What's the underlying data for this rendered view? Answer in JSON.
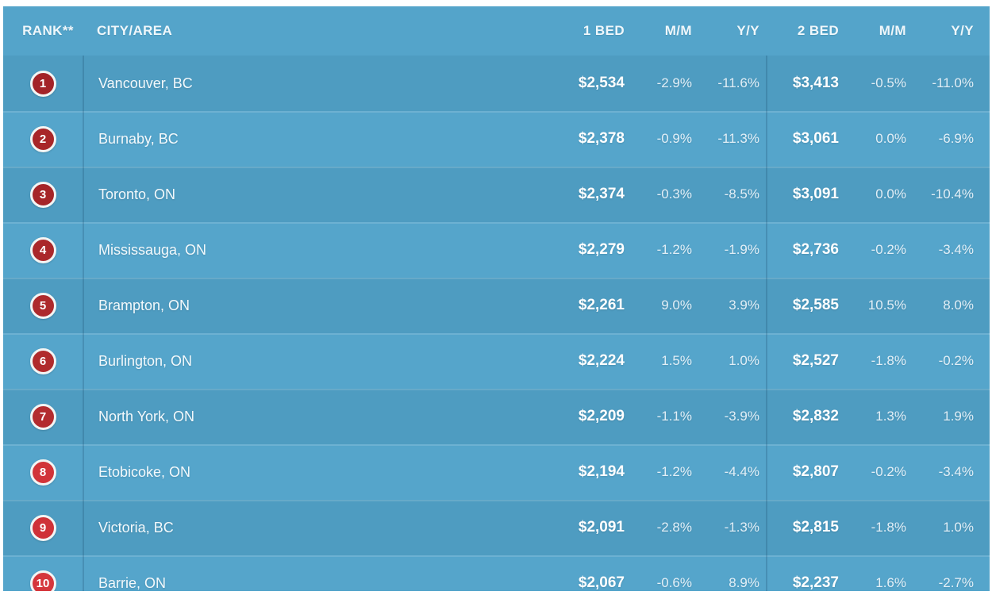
{
  "colors": {
    "header_bg": "#54a4ca",
    "row_dark": "#4e9cc1",
    "row_light": "#55a5cb",
    "divider": "rgba(22,70,100,0.22)",
    "separator": "rgba(255,255,255,0.14)",
    "badge_ring": "#f3f5f4"
  },
  "chart_data": {
    "type": "table",
    "title": "",
    "columns": [
      "RANK**",
      "CITY/AREA",
      "1 BED",
      "M/M",
      "Y/Y",
      "2 BED",
      "M/M",
      "Y/Y"
    ],
    "rows": [
      {
        "rank": "1",
        "city": "Vancouver, BC",
        "one_bed": "$2,534",
        "one_bed_mm": "-2.9%",
        "one_bed_yy": "-11.6%",
        "two_bed": "$3,413",
        "two_bed_mm": "-0.5%",
        "two_bed_yy": "-11.0%",
        "badge_color": "#a32328"
      },
      {
        "rank": "2",
        "city": "Burnaby, BC",
        "one_bed": "$2,378",
        "one_bed_mm": "-0.9%",
        "one_bed_yy": "-11.3%",
        "two_bed": "$3,061",
        "two_bed_mm": "0.0%",
        "two_bed_yy": "-6.9%",
        "badge_color": "#a82629"
      },
      {
        "rank": "3",
        "city": "Toronto, ON",
        "one_bed": "$2,374",
        "one_bed_mm": "-0.3%",
        "one_bed_yy": "-8.5%",
        "two_bed": "$3,091",
        "two_bed_mm": "0.0%",
        "two_bed_yy": "-10.4%",
        "badge_color": "#a52528"
      },
      {
        "rank": "4",
        "city": "Mississauga, ON",
        "one_bed": "$2,279",
        "one_bed_mm": "-1.2%",
        "one_bed_yy": "-1.9%",
        "two_bed": "$2,736",
        "two_bed_mm": "-0.2%",
        "two_bed_yy": "-3.4%",
        "badge_color": "#aa282b"
      },
      {
        "rank": "5",
        "city": "Brampton, ON",
        "one_bed": "$2,261",
        "one_bed_mm": "9.0%",
        "one_bed_yy": "3.9%",
        "two_bed": "$2,585",
        "two_bed_mm": "10.5%",
        "two_bed_yy": "8.0%",
        "badge_color": "#ad2a2c"
      },
      {
        "rank": "6",
        "city": "Burlington, ON",
        "one_bed": "$2,224",
        "one_bed_mm": "1.5%",
        "one_bed_yy": "1.0%",
        "two_bed": "$2,527",
        "two_bed_mm": "-1.8%",
        "two_bed_yy": "-0.2%",
        "badge_color": "#b02b2d"
      },
      {
        "rank": "7",
        "city": "North York, ON",
        "one_bed": "$2,209",
        "one_bed_mm": "-1.1%",
        "one_bed_yy": "-3.9%",
        "two_bed": "$2,832",
        "two_bed_mm": "1.3%",
        "two_bed_yy": "1.9%",
        "badge_color": "#b32c2f"
      },
      {
        "rank": "8",
        "city": "Etobicoke, ON",
        "one_bed": "$2,194",
        "one_bed_mm": "-1.2%",
        "one_bed_yy": "-4.4%",
        "two_bed": "$2,807",
        "two_bed_mm": "-0.2%",
        "two_bed_yy": "-3.4%",
        "badge_color": "#d13439"
      },
      {
        "rank": "9",
        "city": "Victoria, BC",
        "one_bed": "$2,091",
        "one_bed_mm": "-2.8%",
        "one_bed_yy": "-1.3%",
        "two_bed": "$2,815",
        "two_bed_mm": "-1.8%",
        "two_bed_yy": "1.0%",
        "badge_color": "#cf3238"
      },
      {
        "rank": "10",
        "city": "Barrie, ON",
        "one_bed": "$2,067",
        "one_bed_mm": "-0.6%",
        "one_bed_yy": "8.9%",
        "two_bed": "$2,237",
        "two_bed_mm": "1.6%",
        "two_bed_yy": "-2.7%",
        "badge_color": "#d5363c"
      }
    ]
  }
}
